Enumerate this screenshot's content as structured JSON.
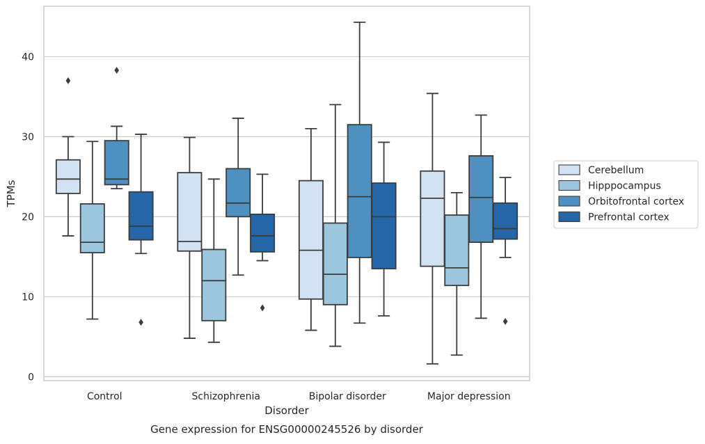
{
  "chart_data": {
    "type": "box",
    "xlabel": "Disorder",
    "ylabel": "TPMs",
    "caption": "Gene expression for ENSG00000245526 by disorder",
    "categories": [
      "Control",
      "Schizophrenia",
      "Bipolar disorder",
      "Major depression"
    ],
    "ylim": [
      -0.5,
      46.3
    ],
    "yticks": [
      0,
      10,
      20,
      30,
      40
    ],
    "grid": "horizontal",
    "legend_position": "right",
    "series": [
      {
        "name": "Cerebellum",
        "color": "#d2e2f2",
        "boxes": [
          {
            "whislo": 17.6,
            "q1": 22.9,
            "med": 24.7,
            "q3": 27.1,
            "whishi": 30.0,
            "fliers": [
              37.0
            ]
          },
          {
            "whislo": 4.8,
            "q1": 15.7,
            "med": 16.9,
            "q3": 25.5,
            "whishi": 29.9,
            "fliers": []
          },
          {
            "whislo": 5.8,
            "q1": 9.7,
            "med": 15.8,
            "q3": 24.5,
            "whishi": 31.0,
            "fliers": []
          },
          {
            "whislo": 1.6,
            "q1": 13.8,
            "med": 22.3,
            "q3": 25.7,
            "whishi": 35.4,
            "fliers": []
          }
        ]
      },
      {
        "name": "Hipppocampus",
        "color": "#9cc5de",
        "boxes": [
          {
            "whislo": 7.2,
            "q1": 15.5,
            "med": 16.8,
            "q3": 21.6,
            "whishi": 29.4,
            "fliers": []
          },
          {
            "whislo": 4.3,
            "q1": 7.0,
            "med": 12.0,
            "q3": 15.9,
            "whishi": 24.7,
            "fliers": []
          },
          {
            "whislo": 3.8,
            "q1": 9.0,
            "med": 12.8,
            "q3": 19.2,
            "whishi": 34.0,
            "fliers": []
          },
          {
            "whislo": 2.7,
            "q1": 11.4,
            "med": 13.6,
            "q3": 20.2,
            "whishi": 23.0,
            "fliers": []
          }
        ]
      },
      {
        "name": "Orbitofrontal cortex",
        "color": "#4e91c1",
        "boxes": [
          {
            "whislo": 23.5,
            "q1": 24.0,
            "med": 24.7,
            "q3": 29.5,
            "whishi": 31.3,
            "fliers": [
              38.3
            ]
          },
          {
            "whislo": 12.7,
            "q1": 20.0,
            "med": 21.7,
            "q3": 26.0,
            "whishi": 32.3,
            "fliers": []
          },
          {
            "whislo": 6.7,
            "q1": 14.9,
            "med": 22.5,
            "q3": 31.5,
            "whishi": 44.3,
            "fliers": []
          },
          {
            "whislo": 7.3,
            "q1": 16.8,
            "med": 22.4,
            "q3": 27.6,
            "whishi": 32.7,
            "fliers": []
          }
        ]
      },
      {
        "name": "Prefrontal cortex",
        "color": "#2466a8",
        "boxes": [
          {
            "whislo": 15.4,
            "q1": 17.1,
            "med": 18.8,
            "q3": 23.1,
            "whishi": 30.3,
            "fliers": [
              6.8
            ]
          },
          {
            "whislo": 14.5,
            "q1": 15.6,
            "med": 17.6,
            "q3": 20.3,
            "whishi": 25.3,
            "fliers": [
              8.6
            ]
          },
          {
            "whislo": 7.6,
            "q1": 13.5,
            "med": 20.0,
            "q3": 24.2,
            "whishi": 29.3,
            "fliers": []
          },
          {
            "whislo": 14.9,
            "q1": 17.2,
            "med": 18.5,
            "q3": 21.7,
            "whishi": 24.9,
            "fliers": [
              6.9
            ]
          }
        ]
      }
    ]
  }
}
